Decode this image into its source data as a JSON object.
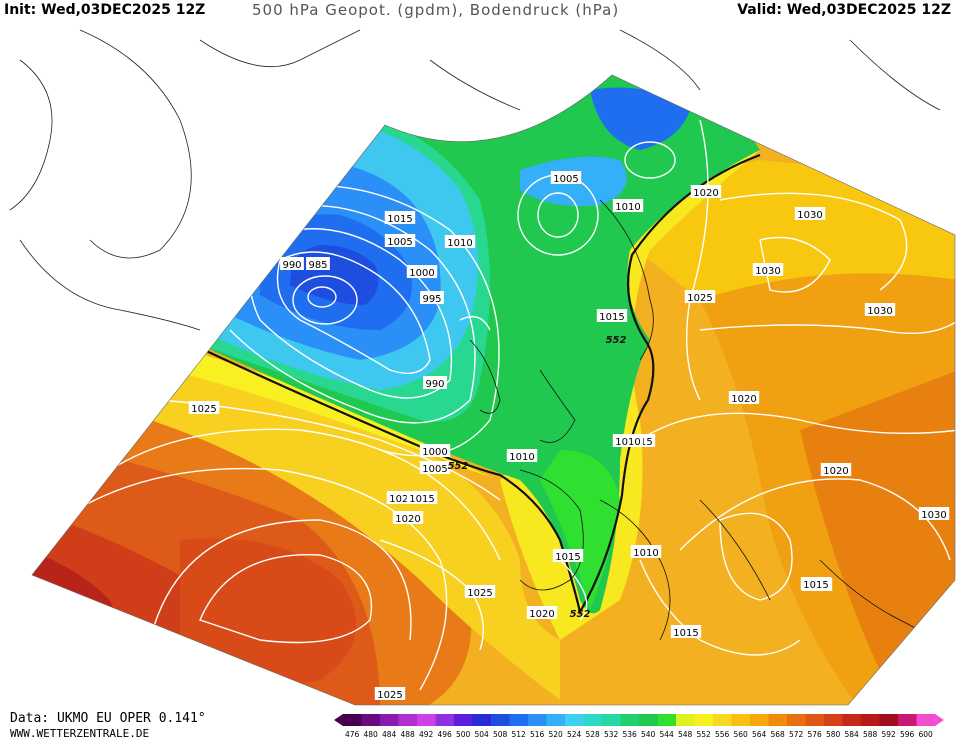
{
  "header": {
    "init_label": "Init: Wed,03DEC2025 12Z",
    "title": "500 hPa Geopot. (gpdm), Bodendruck (hPa)",
    "valid_label": "Valid: Wed,03DEC2025 12Z"
  },
  "footer": {
    "data_source": "Data: UKMO EU OPER 0.141°",
    "website": "WWW.WETTERZENTRALE.DE"
  },
  "legend": {
    "values": [
      "476",
      "480",
      "484",
      "488",
      "492",
      "496",
      "500",
      "504",
      "508",
      "512",
      "516",
      "520",
      "524",
      "528",
      "532",
      "536",
      "540",
      "544",
      "548",
      "552",
      "556",
      "560",
      "564",
      "568",
      "572",
      "576",
      "580",
      "584",
      "588",
      "592",
      "596",
      "600"
    ],
    "colors": [
      "#4a0050",
      "#6a0a80",
      "#8a1ab0",
      "#b030d0",
      "#d040e8",
      "#9030e0",
      "#5a22d8",
      "#2a2ad8",
      "#1e4ee0",
      "#1f6ef0",
      "#2b8ff8",
      "#35b0f8",
      "#3ed0f0",
      "#30d8c8",
      "#28d8a0",
      "#20d070",
      "#20c850",
      "#30e030",
      "#e0f020",
      "#f8f020",
      "#f8d820",
      "#f8c010",
      "#f8a808",
      "#f08a08",
      "#e87010",
      "#e05818",
      "#d84018",
      "#c82818",
      "#b81818",
      "#a00c20",
      "#c81870",
      "#f050d0"
    ]
  },
  "isobar_labels": [
    "1005",
    "1010",
    "1015",
    "1005",
    "1010",
    "990",
    "985",
    "1000",
    "995",
    "990",
    "1000",
    "1005",
    "1010",
    "1015",
    "1020",
    "1025",
    "1030",
    "1030",
    "1015",
    "1010",
    "1020",
    "1030",
    "1030",
    "1025",
    "1025",
    "1015",
    "1020",
    "1020",
    "1015",
    "1010",
    "1015",
    "1025",
    "1020",
    "1015",
    "1025",
    "1015"
  ],
  "contour_labels": [
    "552",
    "552",
    "552"
  ]
}
